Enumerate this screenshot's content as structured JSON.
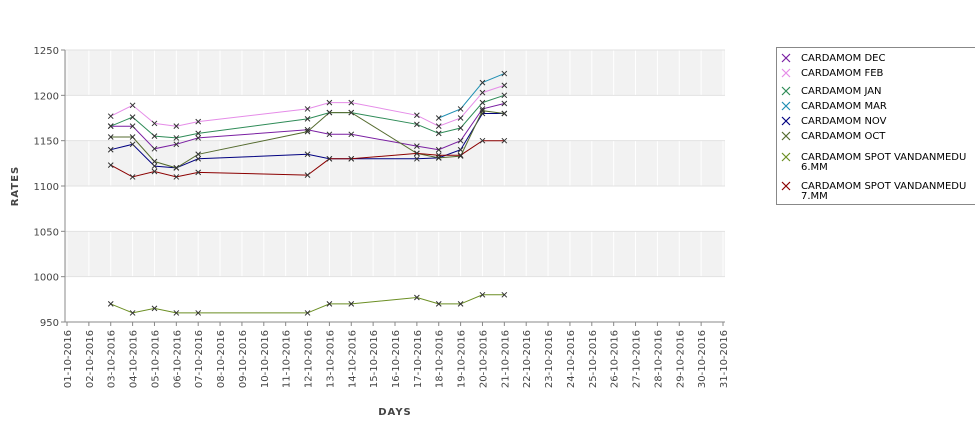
{
  "chart_data": {
    "type": "line",
    "xlabel": "DAYS",
    "ylabel": "RATES",
    "ylim": [
      950,
      1250
    ],
    "yticks": [
      950,
      1000,
      1050,
      1100,
      1150,
      1200,
      1250
    ],
    "x_range": [
      "01-10-2016",
      "31-10-2016"
    ],
    "x_tick_labels": [
      "01-10-2016",
      "02-10-2016",
      "03-10-2016",
      "04-10-2016",
      "05-10-2016",
      "06-10-2016",
      "07-10-2016",
      "08-10-2016",
      "09-10-2016",
      "10-10-2016",
      "11-10-2016",
      "12-10-2016",
      "13-10-2016",
      "14-10-2016",
      "15-10-2016",
      "16-10-2016",
      "17-10-2016",
      "18-10-2016",
      "19-10-2016",
      "20-10-2016",
      "21-10-2016",
      "22-10-2016",
      "23-10-2016",
      "24-10-2016",
      "25-10-2016",
      "26-10-2016",
      "27-10-2016",
      "28-10-2016",
      "29-10-2016",
      "30-10-2016",
      "31-10-2016"
    ],
    "grid": true,
    "legend_position": "right",
    "x": [
      "03-10-2016",
      "04-10-2016",
      "05-10-2016",
      "06-10-2016",
      "07-10-2016",
      "12-10-2016",
      "13-10-2016",
      "14-10-2016",
      "17-10-2016",
      "18-10-2016",
      "19-10-2016",
      "20-10-2016",
      "21-10-2016"
    ],
    "series": [
      {
        "name": "CARDAMOM DEC",
        "color": "#7a1fa2",
        "values": [
          1166,
          1166,
          1141,
          1146,
          1153,
          1162,
          1157,
          1157,
          1144,
          1140,
          1150,
          1185,
          1191
        ]
      },
      {
        "name": "CARDAMOM FEB",
        "color": "#e58ce8",
        "values": [
          1177,
          1189,
          1169,
          1166,
          1171,
          1185,
          1192,
          1192,
          1178,
          1166,
          1175,
          1203,
          1211
        ]
      },
      {
        "name": "CARDAMOM JAN",
        "color": "#2e8b57",
        "values": [
          1166,
          1176,
          1155,
          1153,
          1158,
          1174,
          1181,
          1181,
          1168,
          1158,
          1164,
          1192,
          1200
        ]
      },
      {
        "name": "CARDAMOM MAR",
        "color": "#1f8fb3",
        "values": [
          null,
          null,
          null,
          null,
          null,
          null,
          null,
          null,
          null,
          1175,
          1185,
          1214,
          1224
        ]
      },
      {
        "name": "CARDAMOM NOV",
        "color": "#000080",
        "values": [
          1140,
          1146,
          1122,
          1120,
          1130,
          1135,
          1130,
          1130,
          1130,
          1131,
          1140,
          1180,
          1180
        ]
      },
      {
        "name": "CARDAMOM OCT",
        "color": "#556b2f",
        "values": [
          1154,
          1154,
          1127,
          1120,
          1135,
          1160,
          1181,
          1181,
          1136,
          1131,
          1133,
          1183,
          1180
        ]
      },
      {
        "name": "CARDAMOM SPOT VANDANMEDU 6.MM",
        "color": "#6b8e23",
        "values": [
          970,
          960,
          965,
          960,
          960,
          960,
          970,
          970,
          977,
          970,
          970,
          980,
          980
        ]
      },
      {
        "name": "CARDAMOM SPOT VANDANMEDU 7.MM",
        "color": "#8b0000",
        "values": [
          1123,
          1110,
          1116,
          1110,
          1115,
          1112,
          1130,
          1130,
          1136,
          1134,
          1134,
          1150,
          1150
        ]
      }
    ],
    "legend_lines": [
      [
        "CARDAMOM DEC"
      ],
      [
        "CARDAMOM FEB"
      ],
      [
        "CARDAMOM JAN"
      ],
      [
        "CARDAMOM MAR"
      ],
      [
        "CARDAMOM NOV"
      ],
      [
        "CARDAMOM OCT"
      ],
      [
        "CARDAMOM SPOT VANDANMEDU",
        "6.MM"
      ],
      [
        "CARDAMOM SPOT VANDANMEDU",
        "7.MM"
      ]
    ]
  }
}
